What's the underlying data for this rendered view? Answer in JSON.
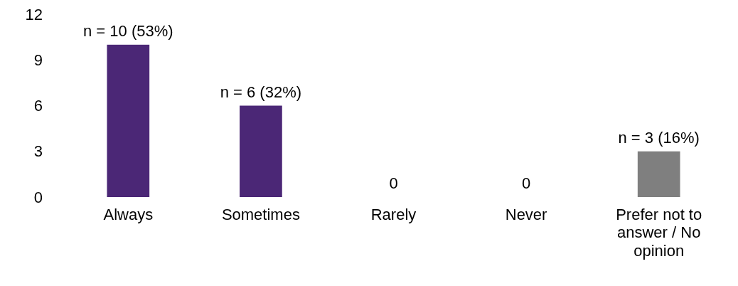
{
  "chart_data": {
    "type": "bar",
    "categories": [
      "Always",
      "Sometimes",
      "Rarely",
      "Never",
      "Prefer not to answer / No opinion"
    ],
    "values": [
      10,
      6,
      0,
      0,
      3
    ],
    "colors": [
      "#4b2776",
      "#4b2776",
      "#4b2776",
      "#4b2776",
      "#7f7f7f"
    ],
    "value_labels": [
      "n = 10 (53%)",
      "n = 6 (32%)",
      "0",
      "0",
      "n = 3 (16%)"
    ],
    "ylim": [
      0,
      12
    ],
    "yticks": [
      0,
      3,
      6,
      9,
      12
    ]
  }
}
